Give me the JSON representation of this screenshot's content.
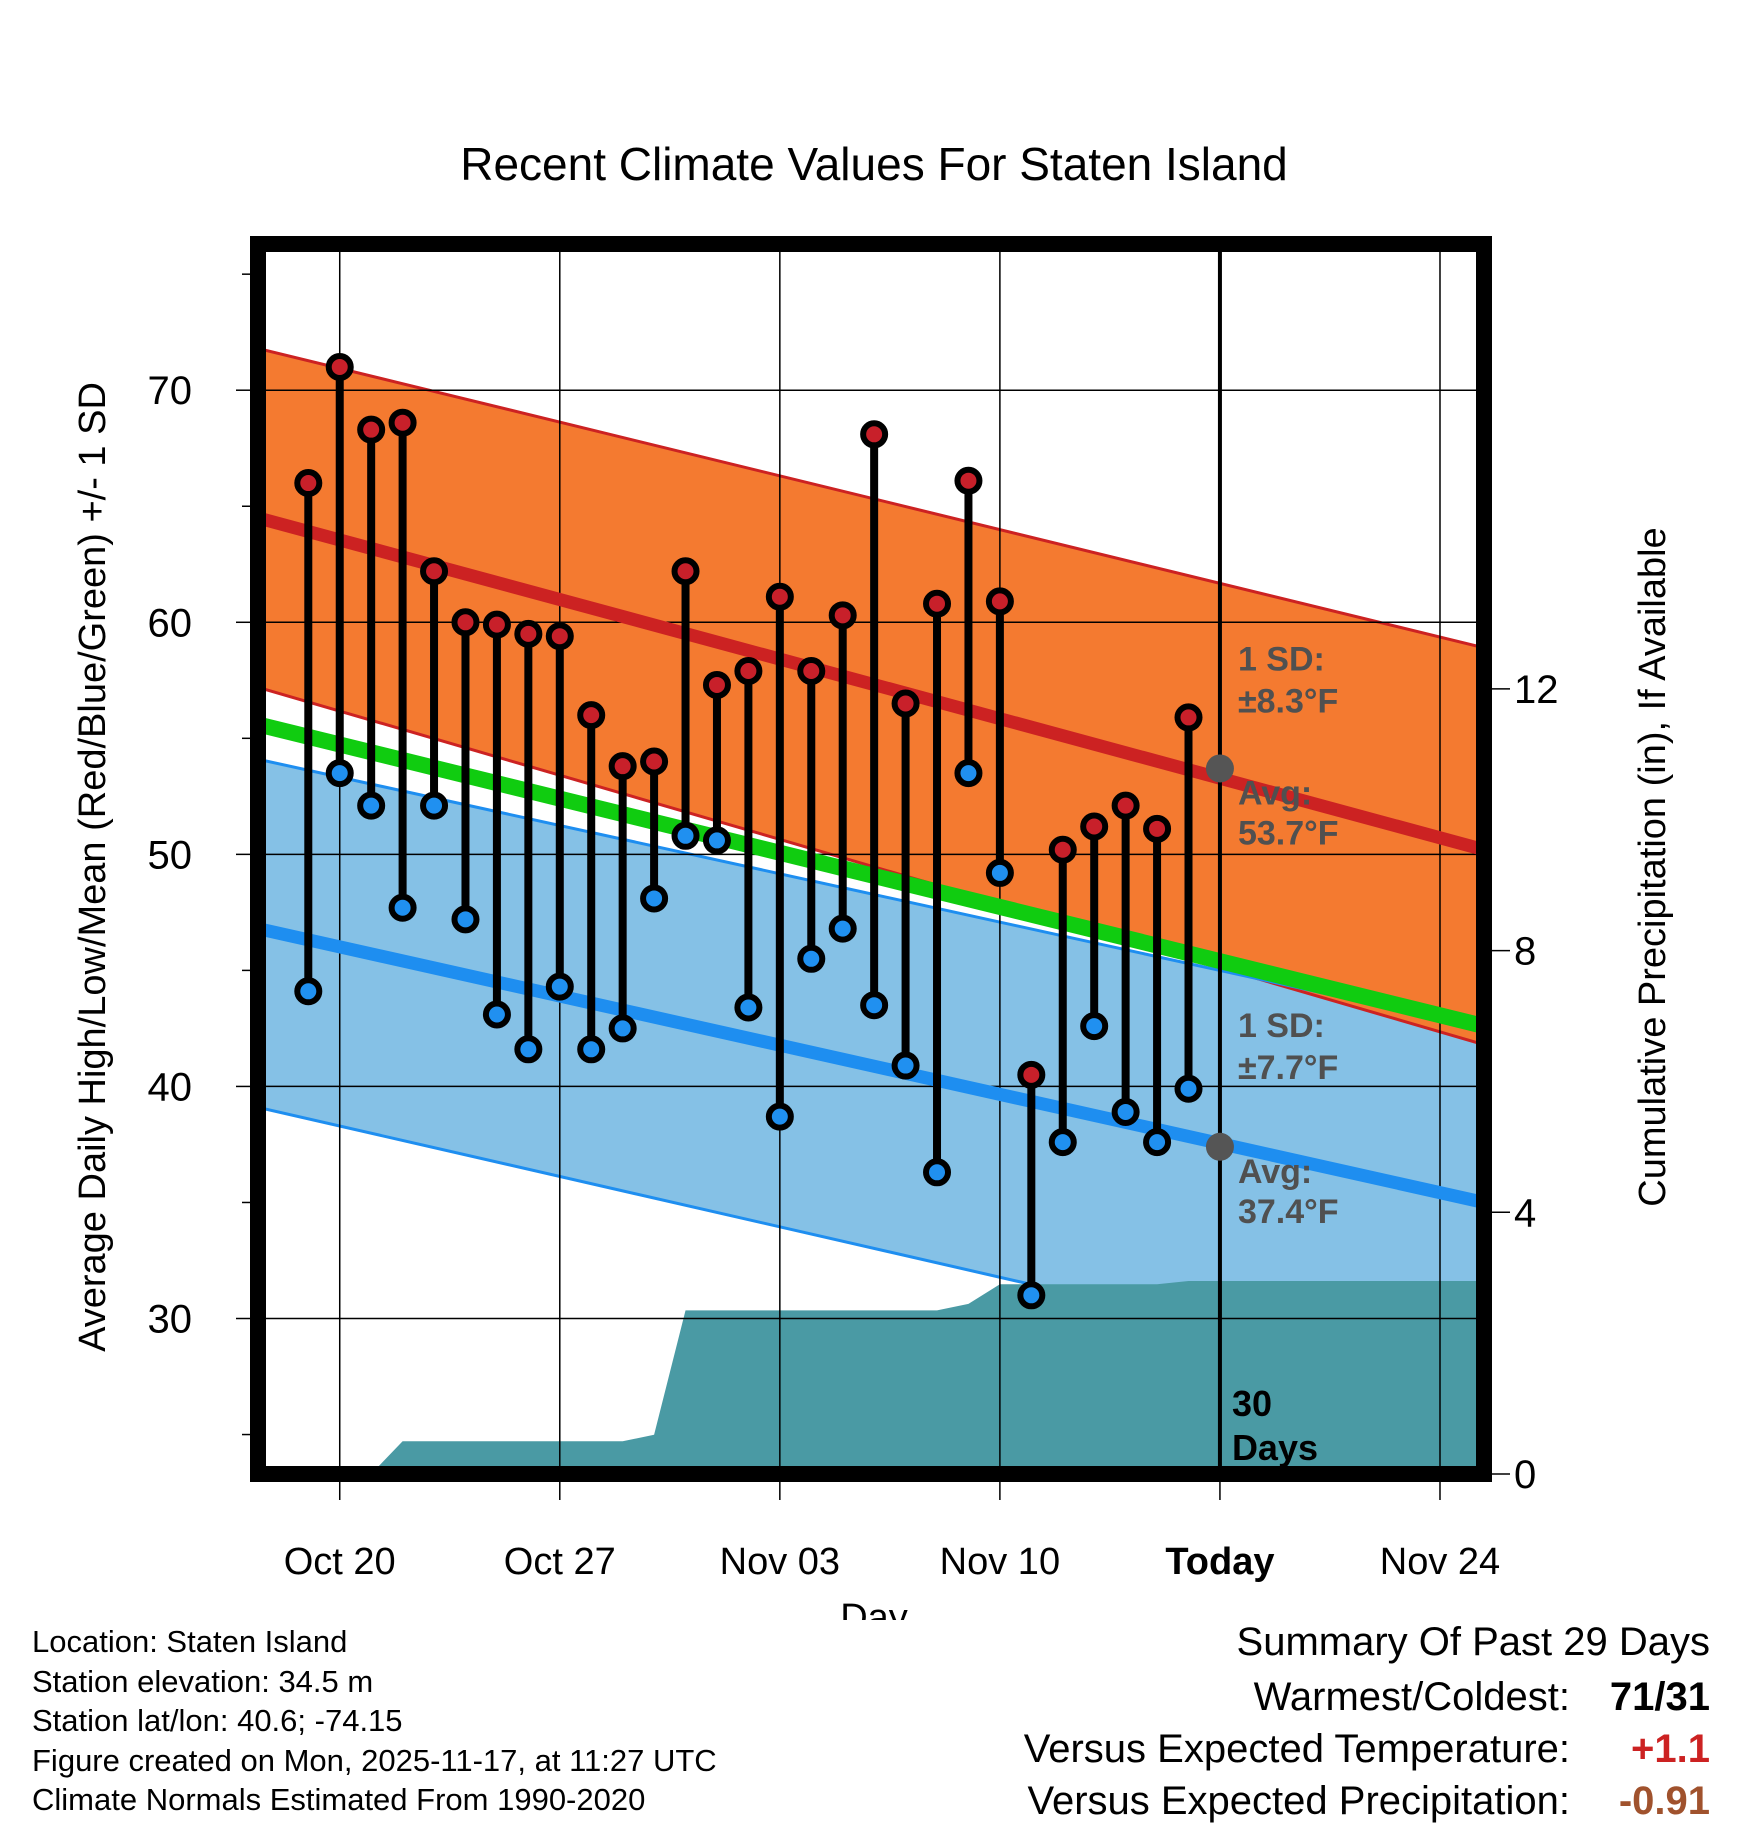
{
  "chart_data": {
    "type": "range-dot",
    "title": "Recent Climate Values For Staten Island",
    "xlabel": "Day",
    "ylabel_left": "Average Daily High/Low/Mean (Red/Blue/Green) +/- 1 SD",
    "ylabel_right": "Cumulative Precipitation (in), If Available",
    "x_range": [
      -0.6,
      38.4
    ],
    "y_range": [
      23.3,
      76.3
    ],
    "precip_range": [
      0,
      18.8
    ],
    "x_ticks": [
      {
        "x": 2,
        "label": "Oct 20"
      },
      {
        "x": 9,
        "label": "Oct 27"
      },
      {
        "x": 16,
        "label": "Nov 03"
      },
      {
        "x": 23,
        "label": "Nov 10"
      },
      {
        "x": 30,
        "label": "Today"
      },
      {
        "x": 37,
        "label": "Nov 24"
      }
    ],
    "y_ticks": [
      30,
      40,
      50,
      60,
      70
    ],
    "precip_ticks": [
      0,
      4,
      8,
      12
    ],
    "today_x": 30,
    "normal_high": {
      "start": 64.5,
      "end": 50.2,
      "sd_upper_start": 71.8,
      "sd_upper_end": 58.9,
      "sd_lower_start": 57.2,
      "sd_lower_end": 41.8
    },
    "normal_low": {
      "start": 46.8,
      "end": 35.0,
      "sd_upper_start": 54.1,
      "sd_upper_end": 42.5,
      "sd_lower_start": 39.1,
      "sd_lower_end": 27.0
    },
    "normal_mean": {
      "start": 55.6,
      "end": 42.6
    },
    "high_annotation": {
      "sd_title": "1 SD:",
      "sd_value": "±8.3°F",
      "avg_title": "Avg:",
      "avg_value": "53.7°F",
      "today_avg": 53.7
    },
    "low_annotation": {
      "sd_title": "1 SD:",
      "sd_value": "±7.7°F",
      "avg_title": "Avg:",
      "avg_value": "37.4°F",
      "today_avg": 37.4
    },
    "daily": {
      "x": [
        1,
        2,
        3,
        4,
        5,
        6,
        7,
        8,
        9,
        10,
        11,
        12,
        13,
        14,
        15,
        16,
        17,
        18,
        19,
        20,
        21,
        22,
        23,
        24,
        25,
        26,
        27,
        28,
        29
      ],
      "high": [
        66,
        71,
        68.3,
        68.6,
        62.2,
        60,
        59.9,
        59.5,
        59.4,
        56,
        53.8,
        54,
        62.2,
        57.3,
        57.9,
        61.1,
        57.9,
        60.3,
        68.1,
        56.5,
        60.8,
        66.1,
        60.9,
        40.5,
        50.2,
        51.2,
        52.1,
        51.1,
        55.9
      ],
      "low": [
        44.1,
        53.5,
        52.1,
        47.7,
        52.1,
        47.2,
        43.1,
        41.6,
        44.3,
        41.6,
        42.5,
        48.1,
        50.8,
        50.6,
        43.4,
        38.7,
        45.5,
        46.8,
        43.5,
        40.9,
        36.3,
        53.5,
        49.2,
        31.0,
        37.6,
        42.6,
        38.9,
        37.6,
        39.9
      ]
    },
    "precip": {
      "x": [
        1,
        2,
        3,
        4,
        5,
        6,
        7,
        8,
        9,
        10,
        11,
        12,
        13,
        14,
        15,
        16,
        17,
        18,
        19,
        20,
        21,
        22,
        23,
        24,
        25,
        26,
        27,
        28,
        29,
        30,
        31,
        32,
        33,
        34,
        35,
        36,
        37,
        38
      ],
      "values": [
        0,
        0,
        0,
        0.5,
        0.5,
        0.5,
        0.5,
        0.5,
        0.5,
        0.5,
        0.5,
        0.6,
        2.5,
        2.5,
        2.5,
        2.5,
        2.5,
        2.5,
        2.5,
        2.5,
        2.5,
        2.6,
        2.9,
        2.9,
        2.9,
        2.9,
        2.9,
        2.9,
        2.95,
        2.95,
        2.95,
        2.95,
        2.95,
        2.95,
        2.95,
        2.95,
        2.95,
        2.95
      ]
    },
    "days_label": [
      "30",
      "Days"
    ],
    "colors": {
      "high_band": "#f47a30",
      "high_line": "#cc2222",
      "low_band": "#85c1e6",
      "low_line": "#1e8ef0",
      "mean_line": "#10cc10",
      "precip": "#4a9aa4",
      "high_dot": "#c8202a",
      "low_dot": "#2090f0",
      "annot": "#505050"
    }
  },
  "footer": {
    "location": "Location: Staten Island",
    "elevation": "Station elevation: 34.5 m",
    "latlon": "Station lat/lon: 40.6; -74.15",
    "created": "Figure created on Mon, 2025-11-17, at 11:27 UTC",
    "normals": "Climate Normals Estimated From 1990-2020"
  },
  "summary": {
    "title": "Summary Of Past 29 Days",
    "warmest_label": "Warmest/Coldest:",
    "warmest_value": "71/31",
    "temp_label": "Versus Expected Temperature:",
    "temp_value": "+1.1",
    "temp_color": "#cc2222",
    "precip_label": "Versus Expected Precipitation:",
    "precip_value": "-0.91",
    "precip_color": "#a0522d"
  }
}
